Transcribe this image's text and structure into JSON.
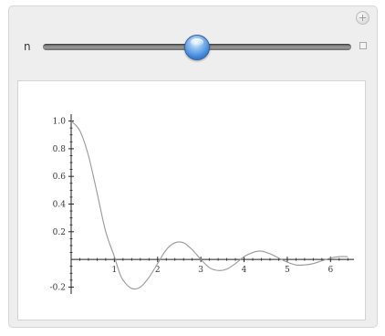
{
  "manipulate": {
    "control": {
      "label": "n",
      "slider_value_fraction": 0.5
    }
  },
  "chart_data": {
    "type": "line",
    "title": "",
    "xlabel": "",
    "ylabel": "",
    "xlim": [
      0,
      6.5
    ],
    "ylim": [
      -0.25,
      1.05
    ],
    "x_ticks": [
      1,
      2,
      3,
      4,
      5,
      6
    ],
    "x_tick_labels": [
      "1",
      "2",
      "3",
      "4",
      "5",
      "6"
    ],
    "y_ticks": [
      -0.2,
      0.2,
      0.4,
      0.6,
      0.8,
      1.0
    ],
    "y_tick_labels": [
      "-0.2",
      "0.2",
      "0.4",
      "0.6",
      "0.8",
      "1.0"
    ],
    "grid": false,
    "series": [
      {
        "color": "#999999",
        "x": [
          0,
          0.2,
          0.4,
          0.6,
          0.8,
          1.0,
          1.1,
          1.2,
          1.4,
          1.6,
          1.8,
          2.0,
          2.2,
          2.4,
          2.6,
          2.8,
          3.0,
          3.2,
          3.4,
          3.6,
          3.8,
          4.0,
          4.2,
          4.4,
          4.6,
          4.8,
          5.0,
          5.2,
          5.4,
          5.6,
          5.8,
          6.0,
          6.2,
          6.4
        ],
        "y": [
          1.0,
          0.93,
          0.75,
          0.48,
          0.2,
          0.02,
          -0.08,
          -0.15,
          -0.21,
          -0.2,
          -0.13,
          -0.03,
          0.07,
          0.12,
          0.12,
          0.07,
          0.0,
          -0.06,
          -0.08,
          -0.07,
          -0.03,
          0.02,
          0.05,
          0.06,
          0.04,
          0.01,
          -0.02,
          -0.04,
          -0.04,
          -0.03,
          -0.01,
          0.01,
          0.02,
          0.02
        ]
      }
    ]
  }
}
